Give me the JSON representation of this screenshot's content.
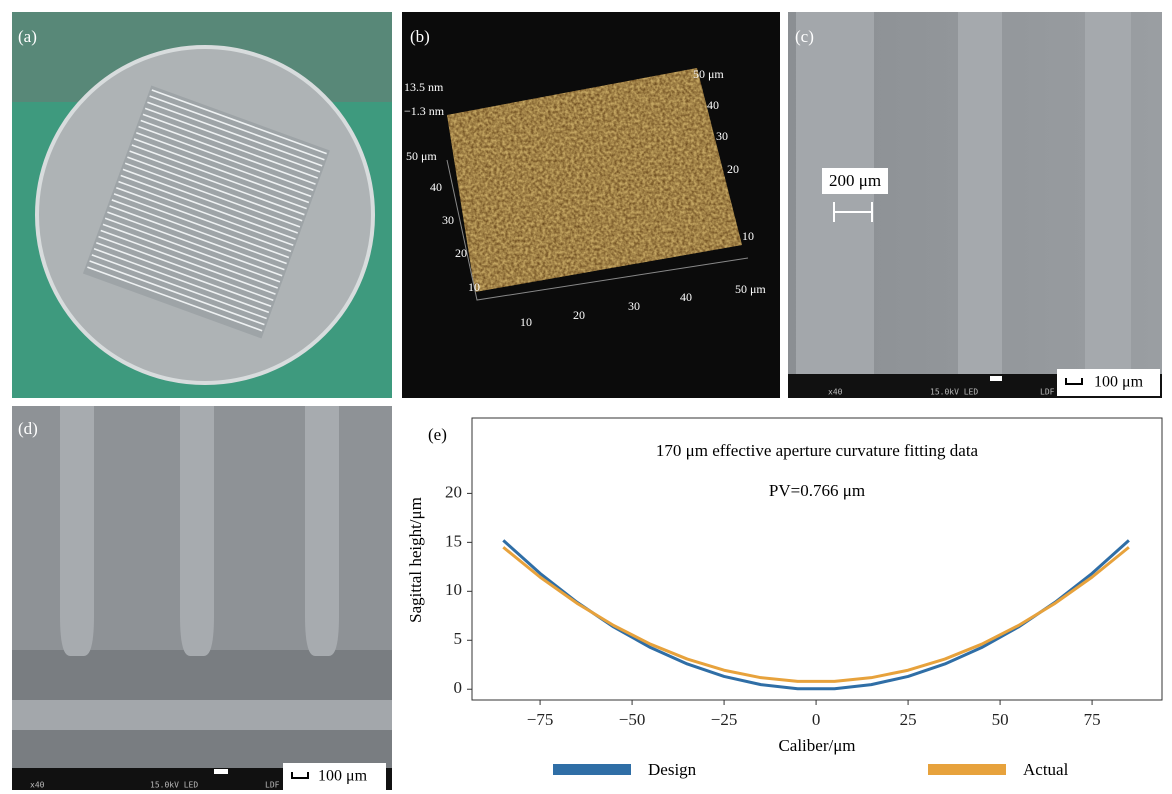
{
  "panels": {
    "a": {
      "label": "(a)"
    },
    "b": {
      "label": "(b)",
      "z_labels": [
        "13.5 nm",
        "−1.3 nm"
      ],
      "left_axis": [
        "50 μm",
        "40",
        "30",
        "20",
        "10"
      ],
      "bottom_axis": [
        "10",
        "20",
        "30",
        "40",
        "50 μm"
      ],
      "right_axis": [
        "50 μm",
        "40",
        "30",
        "20",
        "10"
      ]
    },
    "c": {
      "label": "(c)",
      "annotation": "200 μm",
      "scale_bar": "100 μm",
      "info": [
        "x40",
        "15.0kV LED",
        "LDF"
      ]
    },
    "d": {
      "label": "(d)",
      "scale_bar": "100 μm",
      "info": [
        "x40",
        "15.0kV LED",
        "LDF"
      ]
    }
  },
  "chart_data": {
    "type": "line",
    "label": "(e)",
    "title": "170 μm effective aperture curvature fitting data",
    "annotation": "PV=0.766 μm",
    "x_label": "Caliber/μm",
    "y_label": "Sagittal height/μm",
    "x": [
      -85,
      -75,
      -65,
      -55,
      -45,
      -35,
      -25,
      -15,
      -5,
      5,
      15,
      25,
      35,
      45,
      55,
      65,
      75,
      85
    ],
    "series": [
      {
        "name": "Design",
        "color": "#2f6ea6",
        "values": [
          15.2,
          11.83,
          8.89,
          6.36,
          4.26,
          2.58,
          1.31,
          0.47,
          0.05,
          0.05,
          0.47,
          1.31,
          2.58,
          4.26,
          6.36,
          8.89,
          11.83,
          15.2
        ]
      },
      {
        "name": "Actual",
        "color": "#e7a23c",
        "values": [
          14.5,
          11.45,
          8.79,
          6.51,
          4.6,
          3.08,
          1.94,
          1.18,
          0.8,
          0.8,
          1.18,
          1.94,
          3.08,
          4.6,
          6.51,
          8.79,
          11.45,
          14.5
        ]
      }
    ],
    "xlim": [
      -93.5,
      94
    ],
    "ylim": [
      -1.1,
      27.7
    ],
    "xticks": [
      {
        "value": -75,
        "label": "−75"
      },
      {
        "value": -50,
        "label": "−50"
      },
      {
        "value": -25,
        "label": "−25"
      },
      0,
      25,
      50,
      75
    ],
    "yticks": [
      0,
      5,
      10,
      15,
      20
    ],
    "legend": "bottom",
    "grid": false
  }
}
